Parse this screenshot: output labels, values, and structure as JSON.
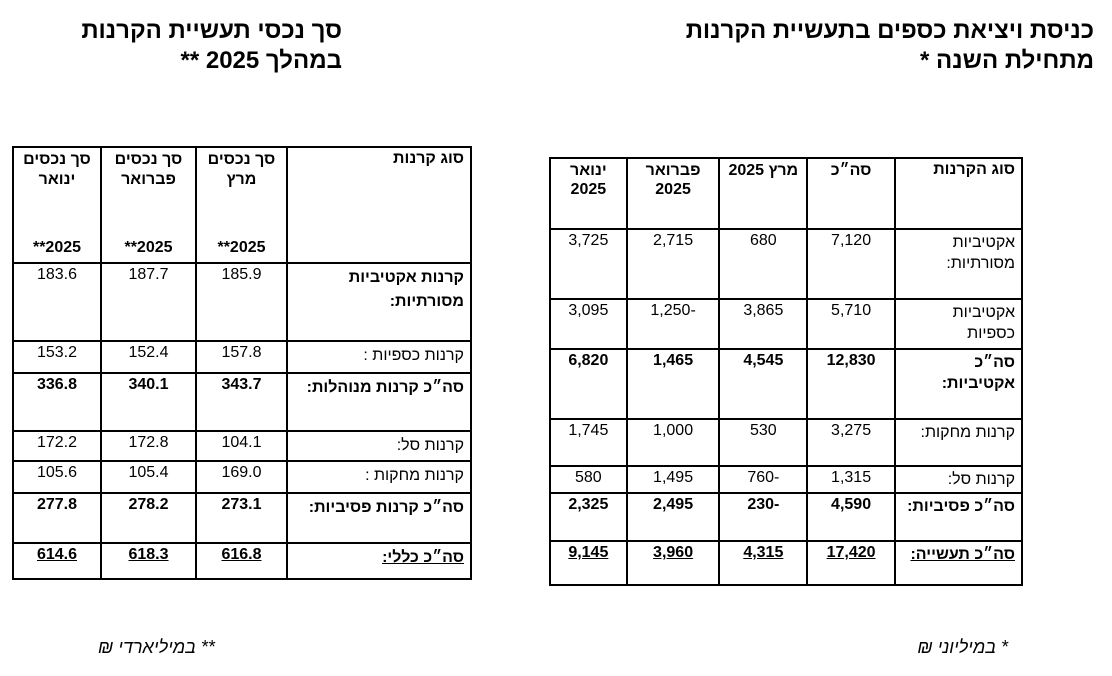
{
  "title_right": {
    "line1": "כניסת ויציאת כספים בתעשיית הקרנות",
    "line2": "מתחילת השנה *"
  },
  "title_left": {
    "line1": "סך נכסי תעשיית הקרנות",
    "line2": "במהלך 2025 **"
  },
  "flows_table": {
    "headers": [
      "סוג הקרנות",
      "סה״כ",
      "מרץ 2025",
      "פברואר 2025",
      "ינואר 2025"
    ],
    "rows": [
      {
        "label": "אקטיביות מסורתיות:",
        "total": "7,120",
        "mar": "680",
        "feb": "2,715",
        "jan": "3,725",
        "style": "normal"
      },
      {
        "label": "אקטיביות כספיות",
        "total": "5,710",
        "mar": "3,865",
        "feb": "-1,250",
        "jan": "3,095",
        "style": "normal"
      },
      {
        "label": "סה״כ אקטיביות:",
        "total": "12,830",
        "mar": "4,545",
        "feb": "1,465",
        "jan": "6,820",
        "style": "bold"
      },
      {
        "label": "קרנות מחקות:",
        "total": "3,275",
        "mar": "530",
        "feb": "1,000",
        "jan": "1,745",
        "style": "normal"
      },
      {
        "label": "קרנות סל:",
        "total": "1,315",
        "mar": "-760",
        "feb": "1,495",
        "jan": "580",
        "style": "normal"
      },
      {
        "label": "סה״כ פסיביות:",
        "total": "4,590",
        "mar": "-230",
        "feb": "2,495",
        "jan": "2,325",
        "style": "bold"
      },
      {
        "label": "סה״כ תעשייה:",
        "total": "17,420",
        "mar": "4,315",
        "feb": "3,960",
        "jan": "9,145",
        "style": "bold-underline"
      }
    ]
  },
  "assets_table": {
    "headers": [
      {
        "text": "סוג קרנות",
        "year": ""
      },
      {
        "text": "סך נכסים מרץ",
        "year": "2025**"
      },
      {
        "text": "סך נכסים פברואר",
        "year": "2025**"
      },
      {
        "text": "סך נכסים ינואר",
        "year": "2025**"
      }
    ],
    "rows": [
      {
        "label": "קרנות אקטיביות מסורתיות:",
        "mar": "185.9",
        "feb": "187.7",
        "jan": "183.6",
        "style": "label-bold"
      },
      {
        "label": "קרנות כספיות :",
        "mar": "157.8",
        "feb": "152.4",
        "jan": "153.2",
        "style": "normal"
      },
      {
        "label": "סה״כ קרנות מנוהלות:",
        "mar": "343.7",
        "feb": "340.1",
        "jan": "336.8",
        "style": "bold"
      },
      {
        "label": "קרנות סל:",
        "mar": "104.1",
        "feb": "172.8",
        "jan": "172.2",
        "style": "normal"
      },
      {
        "label": "קרנות מחקות :",
        "mar": "169.0",
        "feb": "105.4",
        "jan": "105.6",
        "style": "normal"
      },
      {
        "label": "סה״כ קרנות פסיביות:",
        "mar": "273.1",
        "feb": "278.2",
        "jan": "277.8",
        "style": "bold"
      },
      {
        "label": "סה״כ כללי:",
        "mar": "616.8",
        "feb": "618.3",
        "jan": "614.6",
        "style": "bold-underline"
      }
    ]
  },
  "footnotes": {
    "right": "* במיליוני ₪",
    "left": "** במיליארדי ₪"
  }
}
